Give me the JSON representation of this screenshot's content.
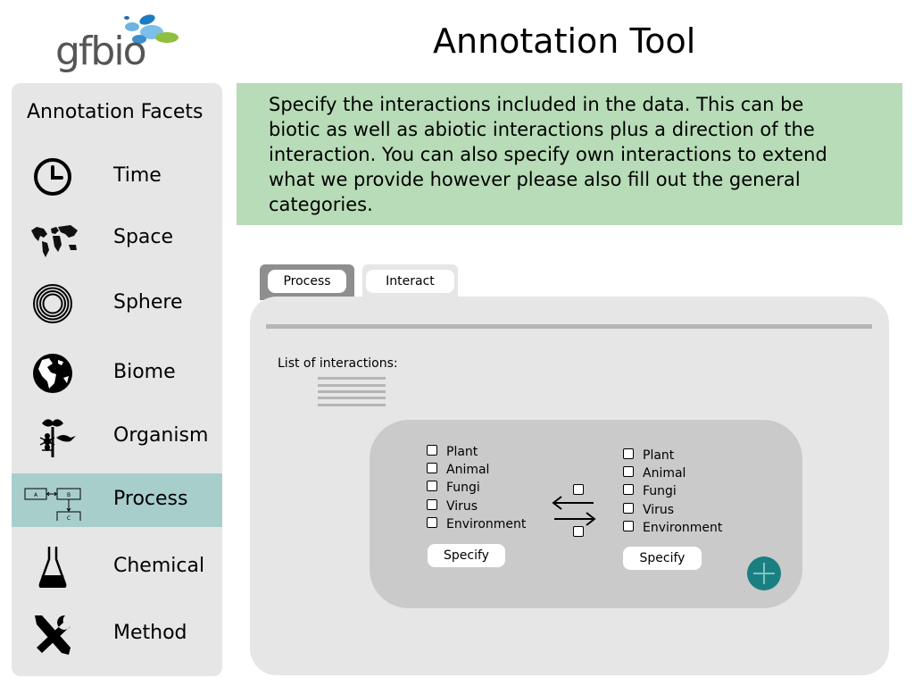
{
  "app": {
    "logo_text": "gfbio",
    "title": "Annotation Tool"
  },
  "sidebar": {
    "title": "Annotation Facets",
    "items": [
      {
        "label": "Time",
        "icon": "clock-icon",
        "active": false
      },
      {
        "label": "Space",
        "icon": "world-map-icon",
        "active": false
      },
      {
        "label": "Sphere",
        "icon": "concentric-circles-icon",
        "active": false
      },
      {
        "label": "Biome",
        "icon": "globe-icon",
        "active": false
      },
      {
        "label": "Organism",
        "icon": "organism-icon",
        "active": false
      },
      {
        "label": "Process",
        "icon": "process-diagram-icon",
        "active": true
      },
      {
        "label": "Chemical",
        "icon": "flask-icon",
        "active": false
      },
      {
        "label": "Method",
        "icon": "tools-icon",
        "active": false
      }
    ]
  },
  "info": {
    "text": "Specify the interactions included in the data. This can be biotic as well as abiotic interactions plus a direction of the interaction. You can also specify own interactions to extend what we provide however please also fill out the general categories."
  },
  "tabs": [
    {
      "label": "Process",
      "active": true
    },
    {
      "label": "Interact",
      "active": false
    }
  ],
  "panel": {
    "list_label": "List of interactions:",
    "left_options": [
      "Plant",
      "Animal",
      "Fungi",
      "Virus",
      "Environment"
    ],
    "right_options": [
      "Plant",
      "Animal",
      "Fungi",
      "Virus",
      "Environment"
    ],
    "left_specify": "Specify",
    "right_specify": "Specify",
    "add_icon": "plus-icon"
  },
  "colors": {
    "active_facet": "#a8cecc",
    "info_bg": "#b7dcb7",
    "add_button": "#1a7f80",
    "panel_bg": "#e6e6e6",
    "inner_bg": "#cacaca"
  }
}
